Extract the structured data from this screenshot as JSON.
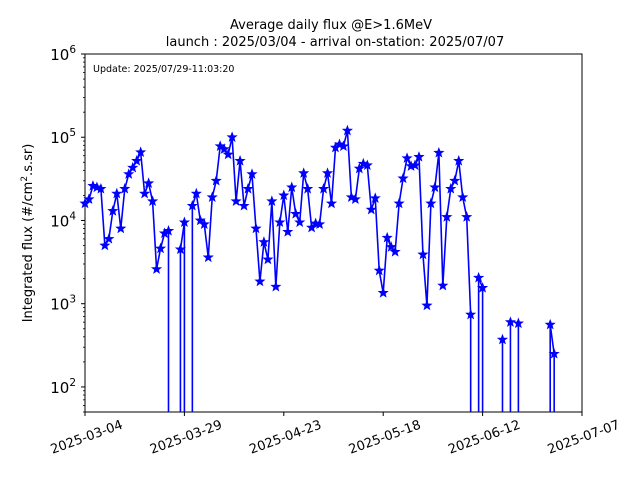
{
  "chart_data": {
    "type": "line",
    "title": "Average daily flux @E>1.6MeV",
    "subtitle": "launch : 2025/03/04 - arrival on-station: 2025/07/07",
    "annotation": "Update: 2025/07/29-11:03:20",
    "ylabel_main": "Integrated flux (#/cm",
    "ylabel_sup": "2",
    "ylabel_tail": ".s.sr)",
    "xlabel": "",
    "yscale": "log",
    "ylim": [
      50,
      1000000
    ],
    "xlim": [
      "2025-03-04",
      "2025-07-07"
    ],
    "xticks": [
      "2025-03-04",
      "2025-03-29",
      "2025-04-23",
      "2025-05-18",
      "2025-06-12",
      "2025-07-07"
    ],
    "yticks": [
      {
        "base": "10",
        "exp": "2",
        "value": 100
      },
      {
        "base": "10",
        "exp": "3",
        "value": 1000
      },
      {
        "base": "10",
        "exp": "4",
        "value": 10000
      },
      {
        "base": "10",
        "exp": "5",
        "value": 100000
      },
      {
        "base": "10",
        "exp": "6",
        "value": 1000000
      }
    ],
    "grid": false,
    "color": "#0000ff",
    "marker": "star",
    "series": [
      {
        "points": [
          [
            "2025-03-04",
            16000
          ],
          [
            "2025-03-05",
            18000
          ],
          [
            "2025-03-06",
            26000
          ],
          [
            "2025-03-07",
            25000
          ],
          [
            "2025-03-08",
            24000
          ],
          [
            "2025-03-09",
            5000
          ],
          [
            "2025-03-10",
            6000
          ],
          [
            "2025-03-11",
            13000
          ],
          [
            "2025-03-12",
            21000
          ],
          [
            "2025-03-13",
            8000
          ],
          [
            "2025-03-14",
            24000
          ],
          [
            "2025-03-15",
            36000
          ],
          [
            "2025-03-16",
            43000
          ],
          [
            "2025-03-17",
            52000
          ],
          [
            "2025-03-18",
            66000
          ],
          [
            "2025-03-19",
            21000
          ],
          [
            "2025-03-20",
            28000
          ],
          [
            "2025-03-21",
            17000
          ],
          [
            "2025-03-22",
            2600
          ],
          [
            "2025-03-23",
            4600
          ],
          [
            "2025-03-24",
            7000
          ],
          [
            "2025-03-25",
            7500
          ],
          [
            "2025-03-26",
            null
          ],
          [
            "2025-03-27",
            null
          ],
          [
            "2025-03-28",
            4500
          ],
          [
            "2025-03-29",
            9500
          ],
          [
            "2025-03-30",
            null
          ],
          [
            "2025-03-31",
            15000
          ],
          [
            "2025-04-01",
            21000
          ],
          [
            "2025-04-02",
            10000
          ],
          [
            "2025-04-03",
            9000
          ],
          [
            "2025-04-04",
            3600
          ],
          [
            "2025-04-05",
            19000
          ],
          [
            "2025-04-06",
            30000
          ],
          [
            "2025-04-07",
            78000
          ],
          [
            "2025-04-08",
            72000
          ],
          [
            "2025-04-09",
            62000
          ],
          [
            "2025-04-10",
            100000
          ],
          [
            "2025-04-11",
            17000
          ],
          [
            "2025-04-12",
            52000
          ],
          [
            "2025-04-13",
            15000
          ],
          [
            "2025-04-14",
            24000
          ],
          [
            "2025-04-15",
            36000
          ],
          [
            "2025-04-16",
            8000
          ],
          [
            "2025-04-17",
            1850
          ],
          [
            "2025-04-18",
            5500
          ],
          [
            "2025-04-19",
            3400
          ],
          [
            "2025-04-20",
            17000
          ],
          [
            "2025-04-21",
            1600
          ],
          [
            "2025-04-22",
            9500
          ],
          [
            "2025-04-23",
            20000
          ],
          [
            "2025-04-24",
            7300
          ],
          [
            "2025-04-25",
            25000
          ],
          [
            "2025-04-26",
            12000
          ],
          [
            "2025-04-27",
            9500
          ],
          [
            "2025-04-28",
            37000
          ],
          [
            "2025-04-29",
            24000
          ],
          [
            "2025-04-30",
            8200
          ],
          [
            "2025-05-01",
            9200
          ],
          [
            "2025-05-02",
            9000
          ],
          [
            "2025-05-03",
            24000
          ],
          [
            "2025-05-04",
            37000
          ],
          [
            "2025-05-05",
            16000
          ],
          [
            "2025-05-06",
            75000
          ],
          [
            "2025-05-07",
            82000
          ],
          [
            "2025-05-08",
            78000
          ],
          [
            "2025-05-09",
            120000
          ],
          [
            "2025-05-10",
            19000
          ],
          [
            "2025-05-11",
            18000
          ],
          [
            "2025-05-12",
            42000
          ],
          [
            "2025-05-13",
            48000
          ],
          [
            "2025-05-14",
            46000
          ],
          [
            "2025-05-15",
            13500
          ],
          [
            "2025-05-16",
            18500
          ],
          [
            "2025-05-17",
            2500
          ],
          [
            "2025-05-18",
            1350
          ],
          [
            "2025-05-19",
            6200
          ],
          [
            "2025-05-20",
            4800
          ],
          [
            "2025-05-21",
            4200
          ],
          [
            "2025-05-22",
            16000
          ],
          [
            "2025-05-23",
            32000
          ],
          [
            "2025-05-24",
            56000
          ],
          [
            "2025-05-25",
            45000
          ],
          [
            "2025-05-26",
            46000
          ],
          [
            "2025-05-27",
            58000
          ],
          [
            "2025-05-28",
            3900
          ],
          [
            "2025-05-29",
            950
          ],
          [
            "2025-05-30",
            16000
          ],
          [
            "2025-05-31",
            25000
          ],
          [
            "2025-06-01",
            65000
          ],
          [
            "2025-06-02",
            1650
          ],
          [
            "2025-06-03",
            11000
          ],
          [
            "2025-06-04",
            24000
          ],
          [
            "2025-06-05",
            30000
          ],
          [
            "2025-06-06",
            52000
          ],
          [
            "2025-06-07",
            19000
          ],
          [
            "2025-06-08",
            11000
          ],
          [
            "2025-06-09",
            740
          ],
          [
            "2025-06-10",
            null
          ],
          [
            "2025-06-11",
            2050
          ],
          [
            "2025-06-12",
            1550
          ],
          [
            "2025-06-13",
            null
          ],
          [
            "2025-06-14",
            null
          ],
          [
            "2025-06-15",
            null
          ],
          [
            "2025-06-16",
            null
          ],
          [
            "2025-06-17",
            370
          ],
          [
            "2025-06-18",
            null
          ],
          [
            "2025-06-19",
            600
          ],
          [
            "2025-06-20",
            null
          ],
          [
            "2025-06-21",
            580
          ],
          [
            "2025-06-22",
            null
          ],
          [
            "2025-06-23",
            null
          ],
          [
            "2025-06-24",
            null
          ],
          [
            "2025-06-25",
            null
          ],
          [
            "2025-06-26",
            null
          ],
          [
            "2025-06-27",
            null
          ],
          [
            "2025-06-28",
            null
          ],
          [
            "2025-06-29",
            560
          ],
          [
            "2025-06-30",
            250
          ],
          [
            "2025-07-01",
            null
          ]
        ]
      }
    ]
  }
}
